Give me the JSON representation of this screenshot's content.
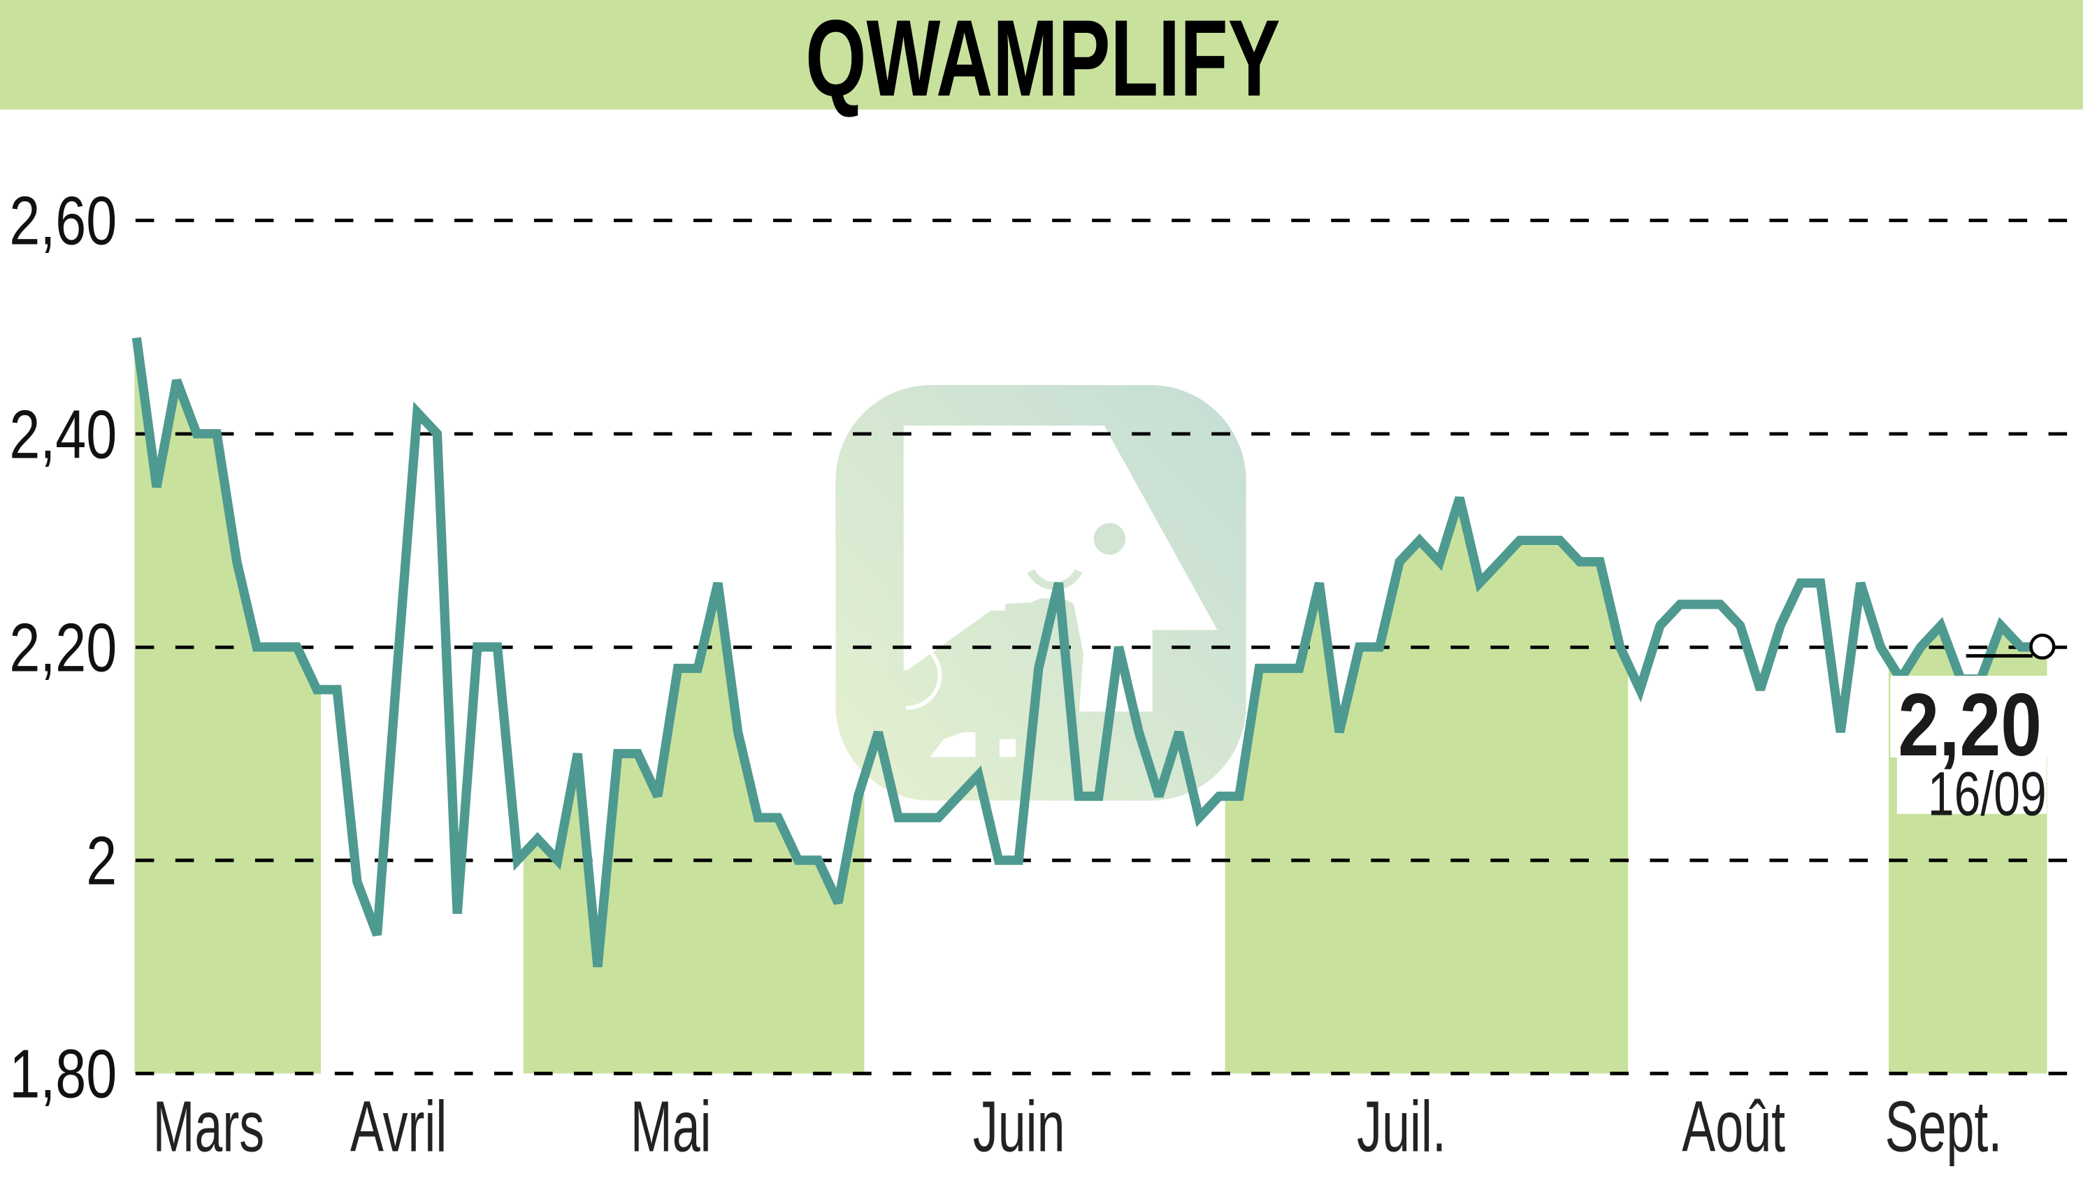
{
  "header": {
    "title": "QWAMPLIFY"
  },
  "y_axis": {
    "labels": [
      "2,60",
      "2,40",
      "2,20",
      "2",
      "1,80"
    ]
  },
  "x_axis": {
    "labels": [
      "Mars",
      "Avril",
      "Mai",
      "Juin",
      "Juil.",
      "Août",
      "Sept."
    ]
  },
  "last_quote": {
    "value": "2,20",
    "date": "16/09"
  },
  "watermark": {
    "icon": "bull-logo-icon"
  },
  "colors": {
    "header_band": "#c8e29e",
    "month_shade": "#c8e29e",
    "price_line": "#4e9a90",
    "gridline": "#000000",
    "watermark_light": "#e3efcd",
    "watermark_dark": "#c3ddd2",
    "text": "#1a1a1a"
  },
  "chart_data": {
    "type": "line",
    "title": "QWAMPLIFY",
    "xlabel": "",
    "ylabel": "",
    "ylim": [
      1.8,
      2.6
    ],
    "yticks": [
      2.6,
      2.4,
      2.2,
      2.0,
      1.8
    ],
    "ytick_labels": [
      "2,60",
      "2,40",
      "2,20",
      "2",
      "1,80"
    ],
    "grid": "horizontal dashed",
    "legend": "none",
    "x_unit": "trading day index",
    "x_range": [
      0,
      95
    ],
    "months": [
      {
        "label": "Mars",
        "center": 3.6,
        "shaded": true,
        "range": [
          -0.1,
          9.2
        ]
      },
      {
        "label": "Avril",
        "center": 13.1,
        "shaded": false,
        "range": [
          9.2,
          19.3
        ]
      },
      {
        "label": "Mai",
        "center": 26.7,
        "shaded": true,
        "range": [
          19.3,
          36.3
        ]
      },
      {
        "label": "Juin",
        "center": 44.0,
        "shaded": false,
        "range": [
          36.3,
          54.3
        ]
      },
      {
        "label": "Juil.",
        "center": 63.1,
        "shaded": true,
        "range": [
          54.3,
          74.4
        ]
      },
      {
        "label": "Août",
        "center": 79.7,
        "shaded": false,
        "range": [
          74.4,
          87.4
        ]
      },
      {
        "label": "Sept.",
        "center": 90.1,
        "shaded": true,
        "range": [
          87.4,
          95.3
        ]
      }
    ],
    "series": [
      {
        "name": "QWAMPLIFY",
        "values": [
          2.49,
          2.35,
          2.45,
          2.4,
          2.4,
          2.28,
          2.2,
          2.2,
          2.2,
          2.16,
          2.16,
          1.98,
          1.93,
          2.18,
          2.42,
          2.4,
          1.95,
          2.2,
          2.2,
          2.0,
          2.02,
          2.0,
          2.1,
          1.9,
          2.1,
          2.1,
          2.06,
          2.18,
          2.18,
          2.26,
          2.12,
          2.04,
          2.04,
          2.0,
          2.0,
          1.96,
          2.06,
          2.12,
          2.04,
          2.04,
          2.04,
          2.06,
          2.08,
          2.0,
          2.0,
          2.18,
          2.26,
          2.06,
          2.06,
          2.2,
          2.12,
          2.06,
          2.12,
          2.04,
          2.06,
          2.06,
          2.18,
          2.18,
          2.18,
          2.26,
          2.12,
          2.2,
          2.2,
          2.28,
          2.3,
          2.28,
          2.34,
          2.26,
          2.28,
          2.3,
          2.3,
          2.3,
          2.28,
          2.28,
          2.2,
          2.16,
          2.22,
          2.24,
          2.24,
          2.24,
          2.22,
          2.16,
          2.22,
          2.26,
          2.26,
          2.12,
          2.26,
          2.2,
          2.17,
          2.2,
          2.22,
          2.17,
          2.17,
          2.22,
          2.2,
          2.2
        ]
      }
    ],
    "last_value": 2.2,
    "last_value_label": "2,20",
    "last_date": "16/09",
    "annotations": [
      "2,20",
      "16/09"
    ]
  }
}
